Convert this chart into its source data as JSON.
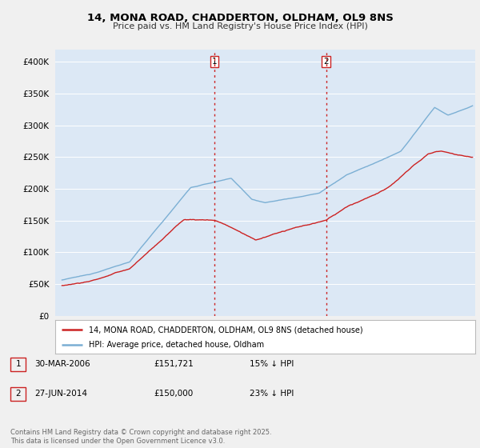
{
  "title_line1": "14, MONA ROAD, CHADDERTON, OLDHAM, OL9 8NS",
  "title_line2": "Price paid vs. HM Land Registry's House Price Index (HPI)",
  "hpi_color": "#7bafd4",
  "price_color": "#cc2222",
  "vline_color": "#cc2222",
  "marker1_year": 2006.25,
  "marker2_year": 2014.5,
  "legend_line1": "14, MONA ROAD, CHADDERTON, OLDHAM, OL9 8NS (detached house)",
  "legend_line2": "HPI: Average price, detached house, Oldham",
  "table_row1": [
    "1",
    "30-MAR-2006",
    "£151,721",
    "15% ↓ HPI"
  ],
  "table_row2": [
    "2",
    "27-JUN-2014",
    "£150,000",
    "23% ↓ HPI"
  ],
  "footnote": "Contains HM Land Registry data © Crown copyright and database right 2025.\nThis data is licensed under the Open Government Licence v3.0.",
  "ylim_min": 0,
  "ylim_max": 420000,
  "yticks": [
    0,
    50000,
    100000,
    150000,
    200000,
    250000,
    300000,
    350000,
    400000
  ],
  "xlim_min": 1994.5,
  "xlim_max": 2025.5,
  "plot_bg_color": "#dce8f5",
  "fig_bg_color": "#f0f0f0"
}
